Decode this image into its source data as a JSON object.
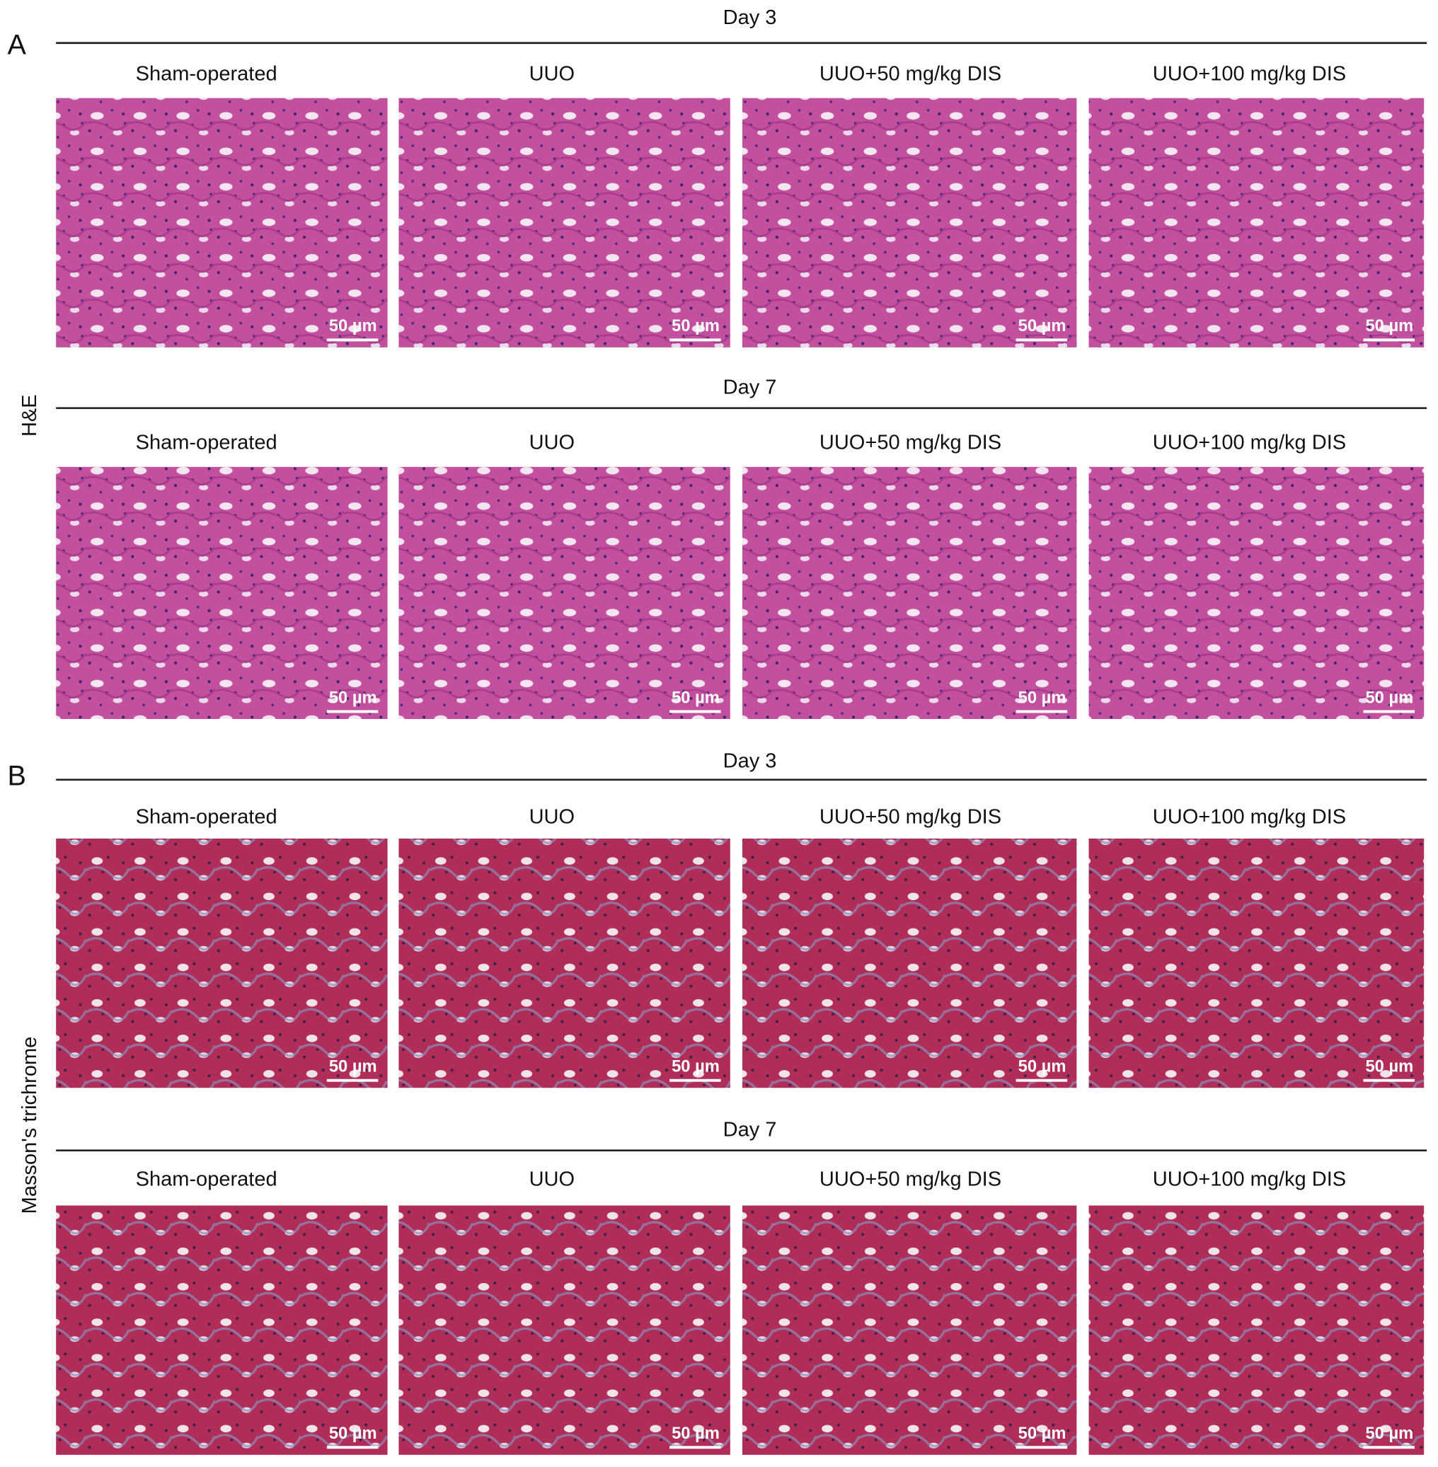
{
  "panels": [
    {
      "label": "A",
      "stain": "H&E",
      "rows": [
        {
          "day": "Day 3",
          "columns": [
            "Sham-operated",
            "UUO",
            "UUO+50 mg/kg DIS",
            "UUO+100 mg/kg DIS"
          ],
          "scale_bars": [
            "50 µm",
            "50 µm",
            "50 µm",
            "50 µm"
          ]
        },
        {
          "day": "Day 7",
          "columns": [
            "Sham-operated",
            "UUO",
            "UUO+50 mg/kg DIS",
            "UUO+100 mg/kg DIS"
          ],
          "scale_bars": [
            "50 µm",
            "50 µm",
            "50 µm",
            "50 µm"
          ]
        }
      ]
    },
    {
      "label": "B",
      "stain": "Masson's trichrome",
      "rows": [
        {
          "day": "Day 3",
          "columns": [
            "Sham-operated",
            "UUO",
            "UUO+50 mg/kg DIS",
            "UUO+100 mg/kg DIS"
          ],
          "scale_bars": [
            "50 µm",
            "50 µm",
            "50 µm",
            "50 µm"
          ]
        },
        {
          "day": "Day 7",
          "columns": [
            "Sham-operated",
            "UUO",
            "UUO+50 mg/kg DIS",
            "UUO+100 mg/kg DIS"
          ],
          "scale_bars": [
            "50 µm",
            "50 µm",
            "50 µm",
            "50 µm"
          ]
        }
      ]
    }
  ]
}
